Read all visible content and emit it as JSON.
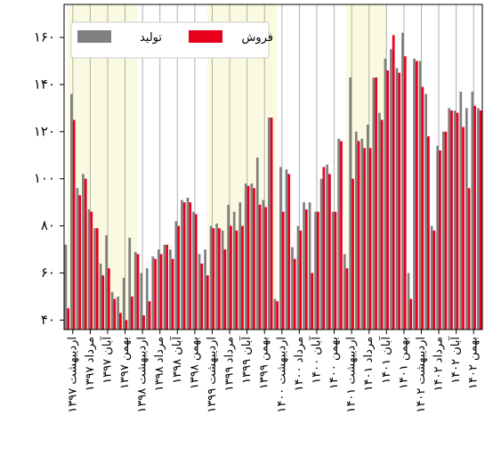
{
  "chart_data": {
    "type": "bar",
    "categories": [
      null,
      "اردیبهشت ۱۳۹۷",
      null,
      null,
      "مرداد ۱۳۹۷",
      null,
      null,
      "آبان ۱۳۹۷",
      null,
      null,
      "بهمن ۱۳۹۷",
      null,
      null,
      "اردیبهشت ۱۳۹۸",
      null,
      null,
      "مرداد ۱۳۹۸",
      null,
      null,
      "آبان ۱۳۹۸",
      null,
      null,
      "بهمن ۱۳۹۸",
      null,
      null,
      "اردیبهشت ۱۳۹۹",
      null,
      null,
      "مرداد ۱۳۹۹",
      null,
      null,
      "آبان ۱۳۹۹",
      null,
      null,
      "بهمن ۱۳۹۹",
      null,
      null,
      "اردیبهشت ۱۴۰۰",
      null,
      null,
      "مرداد ۱۴۰۰",
      null,
      null,
      "آبان ۱۴۰۰",
      null,
      null,
      "بهمن ۱۴۰۰",
      null,
      null,
      "اردیبهشت ۱۴۰۱",
      null,
      null,
      "مرداد ۱۴۰۱",
      null,
      null,
      "آبان ۱۴۰۱",
      null,
      null,
      "بهمن ۱۴۰۱",
      null,
      null,
      "اردیبهشت ۱۴۰۲",
      null,
      null,
      "مرداد ۱۴۰۲",
      null,
      null,
      "آبان ۱۴۰۲",
      null,
      null,
      "بهمن ۱۴۰۲",
      null
    ],
    "series": [
      {
        "name": "تولید",
        "color": "#808080",
        "values": [
          72,
          136,
          96,
          102,
          87,
          79,
          64,
          76,
          52,
          50,
          58,
          75,
          69,
          60,
          62,
          67,
          70,
          72,
          70,
          82,
          91,
          92,
          86,
          68,
          70,
          80,
          81,
          78,
          89,
          86,
          90,
          98,
          98,
          109,
          91,
          126,
          49,
          105,
          104,
          71,
          80,
          90,
          90,
          86,
          100,
          106,
          86,
          117,
          68,
          143,
          120,
          117,
          123,
          143,
          128,
          151,
          155,
          147,
          162,
          60,
          151,
          150,
          136,
          80,
          114,
          120,
          130,
          129,
          137,
          130,
          137,
          130
        ]
      },
      {
        "name": "فروش",
        "color": "#e8001c",
        "values": [
          45,
          125,
          93,
          100,
          86,
          79,
          59,
          62,
          49,
          43,
          40,
          50,
          68,
          42,
          48,
          66,
          68,
          72,
          66,
          80,
          90,
          90,
          85,
          64,
          59,
          79,
          79,
          70,
          80,
          78,
          80,
          97,
          96,
          89,
          88,
          126,
          48,
          86,
          102,
          66,
          78,
          87,
          60,
          86,
          105,
          102,
          86,
          116,
          62,
          100,
          116,
          113,
          113,
          143,
          125,
          146,
          161,
          145,
          152,
          49,
          150,
          139,
          118,
          78,
          112,
          120,
          129,
          128,
          122,
          96,
          131,
          129
        ]
      }
    ],
    "ylim": [
      36,
      174
    ],
    "yticks": [
      {
        "value": 40,
        "label": "۴۰"
      },
      {
        "value": 60,
        "label": "۶۰"
      },
      {
        "value": 80,
        "label": "۸۰"
      },
      {
        "value": 100,
        "label": "۱۰۰"
      },
      {
        "value": 120,
        "label": "۱۲۰"
      },
      {
        "value": 140,
        "label": "۱۴۰"
      },
      {
        "value": 160,
        "label": "۱۶۰"
      }
    ],
    "grid": true,
    "legend": "upper left"
  }
}
